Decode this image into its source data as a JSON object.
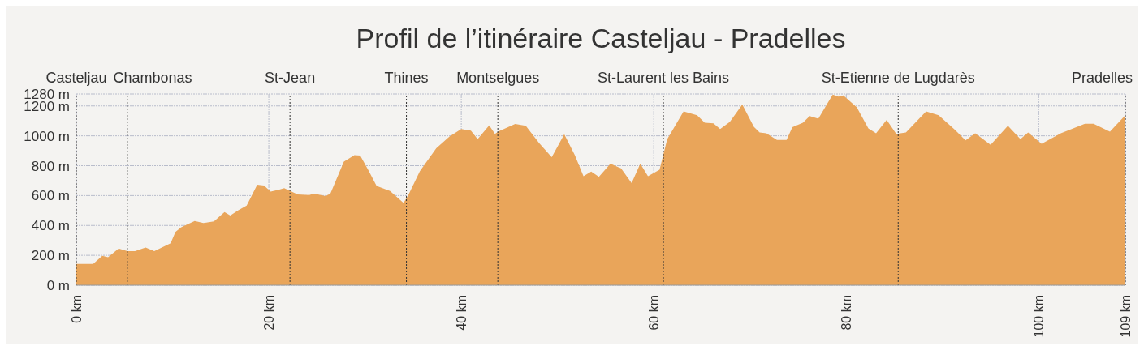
{
  "chart_data": {
    "type": "area",
    "title": "Profil de l’itinéraire Casteljau - Pradelles",
    "x": [
      0,
      1.75,
      2.7,
      3.3,
      4.4,
      5.3,
      6.1,
      7.2,
      8.1,
      9.8,
      10.3,
      10.9,
      12.3,
      13.2,
      14.3,
      15.4,
      16.0,
      16.8,
      17.7,
      18.8,
      19.5,
      20.2,
      21.1,
      21.6,
      23.0,
      24.2,
      24.7,
      25.9,
      26.4,
      27.8,
      28.9,
      29.5,
      30.4,
      31.2,
      32.6,
      34.0,
      34.5,
      35.7,
      37.4,
      38.8,
      40.0,
      41.0,
      41.7,
      42.9,
      43.5,
      43.9,
      45.6,
      46.7,
      48.1,
      49.4,
      50.7,
      51.8,
      52.7,
      53.5,
      54.3,
      55.5,
      56.6,
      57.7,
      58.6,
      59.4,
      60.6,
      61.4,
      63.1,
      64.5,
      65.3,
      66.2,
      66.9,
      67.9,
      69.2,
      70.4,
      71.0,
      71.7,
      72.8,
      73.8,
      74.4,
      75.5,
      76.2,
      77.1,
      78.6,
      79.2,
      79.7,
      81.1,
      82.3,
      83.1,
      84.2,
      85.2,
      86.2,
      88.3,
      89.6,
      91.3,
      92.4,
      93.4,
      95.0,
      96.8,
      98.1,
      98.9,
      100.3,
      102.3,
      104.8,
      105.7,
      107.4,
      109
    ],
    "values": [
      142,
      142,
      196,
      187,
      245,
      228,
      228,
      252,
      228,
      281,
      356,
      388,
      430,
      416,
      427,
      489,
      466,
      501,
      533,
      672,
      667,
      626,
      640,
      649,
      608,
      604,
      613,
      596,
      613,
      827,
      871,
      868,
      764,
      665,
      631,
      551,
      604,
      764,
      916,
      996,
      1045,
      1035,
      978,
      1070,
      1013,
      1031,
      1079,
      1067,
      951,
      857,
      1010,
      871,
      729,
      761,
      725,
      814,
      782,
      684,
      814,
      729,
      773,
      978,
      1164,
      1138,
      1088,
      1084,
      1045,
      1093,
      1209,
      1060,
      1022,
      1017,
      972,
      972,
      1058,
      1088,
      1132,
      1115,
      1276,
      1262,
      1271,
      1191,
      1049,
      1017,
      1106,
      1013,
      1022,
      1164,
      1138,
      1040,
      969,
      1017,
      939,
      1067,
      978,
      1022,
      946,
      1017,
      1081,
      1081,
      1028,
      1138
    ],
    "color": "#e9a55a",
    "xlim": [
      0,
      109
    ],
    "xticks": [
      {
        "value": 0,
        "label": "0 km"
      },
      {
        "value": 20,
        "label": "20 km"
      },
      {
        "value": 40,
        "label": "40 km"
      },
      {
        "value": 60,
        "label": "60 km"
      },
      {
        "value": 80,
        "label": "80 km"
      },
      {
        "value": 100,
        "label": "100 km"
      },
      {
        "value": 109,
        "label": "109 km"
      }
    ],
    "ylim": [
      0,
      1280
    ],
    "yticks": [
      {
        "value": 0,
        "label": "0 m"
      },
      {
        "value": 200,
        "label": "200 m"
      },
      {
        "value": 400,
        "label": "400 m"
      },
      {
        "value": 600,
        "label": "600 m"
      },
      {
        "value": 800,
        "label": "800 m"
      },
      {
        "value": 1000,
        "label": "1000 m"
      },
      {
        "value": 1200,
        "label": "1200 m"
      },
      {
        "value": 1280,
        "label": "1280 m"
      }
    ],
    "grid": true,
    "ref_lines": [
      {
        "axis": "x",
        "value": 0,
        "label": "Casteljau",
        "color": "#333333",
        "line_style": "dotted"
      },
      {
        "axis": "x",
        "value": 5.3,
        "label": "Chambonas",
        "color": "#333333",
        "line_style": "dotted"
      },
      {
        "axis": "x",
        "value": 22.2,
        "label": "St-Jean",
        "color": "#333333",
        "line_style": "dotted"
      },
      {
        "axis": "x",
        "value": 34.3,
        "label": "Thines",
        "color": "#333333",
        "line_style": "dotted"
      },
      {
        "axis": "x",
        "value": 43.8,
        "label": "Montselgues",
        "color": "#333333",
        "line_style": "dotted"
      },
      {
        "axis": "x",
        "value": 61.0,
        "label": "St-Laurent les Bains",
        "color": "#333333",
        "line_style": "dotted"
      },
      {
        "axis": "x",
        "value": 85.4,
        "label": "St-Etienne de Lugdarès",
        "color": "#333333",
        "line_style": "dotted"
      },
      {
        "axis": "x",
        "value": 109,
        "label": "Pradelles",
        "color": "#333333",
        "line_style": "dotted"
      }
    ]
  }
}
